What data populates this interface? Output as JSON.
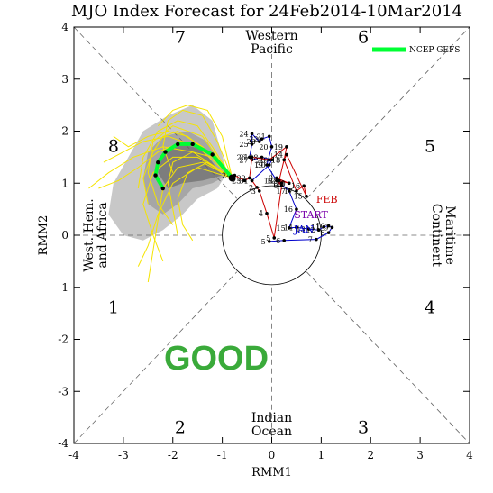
{
  "chart_data": {
    "type": "scatter",
    "title": "MJO Index Forecast for 24Feb2014-10Mar2014",
    "xlabel": "RMM1",
    "ylabel": "RMM2",
    "xlim": [
      -4,
      4
    ],
    "ylim": [
      -4,
      4
    ],
    "x_ticks": [
      "-4",
      "-3",
      "-2",
      "-1",
      "0",
      "1",
      "2",
      "3",
      "4"
    ],
    "y_ticks": [
      "-4",
      "-3",
      "-2",
      "-1",
      "0",
      "1",
      "2",
      "3",
      "4"
    ],
    "grid": false,
    "legend": {
      "position": "top-right",
      "entries": [
        {
          "name": "NCEP GEFS",
          "color": "#00ff33"
        }
      ]
    },
    "phase_numbers": [
      {
        "label": "1",
        "x": -3.2,
        "y": -1.5
      },
      {
        "label": "2",
        "x": -1.85,
        "y": -3.8
      },
      {
        "label": "3",
        "x": 1.85,
        "y": -3.8
      },
      {
        "label": "4",
        "x": 3.2,
        "y": -1.5
      },
      {
        "label": "5",
        "x": 3.2,
        "y": 1.6
      },
      {
        "label": "6",
        "x": 1.85,
        "y": 3.7
      },
      {
        "label": "7",
        "x": -1.85,
        "y": 3.7
      },
      {
        "label": "8",
        "x": -3.2,
        "y": 1.6
      }
    ],
    "region_labels": {
      "top": [
        "Western",
        "Pacific"
      ],
      "bottom": [
        "Indian",
        "Ocean"
      ],
      "left": [
        "West. Hem.",
        "and Africa"
      ],
      "right": [
        "Maritime",
        "Continent"
      ]
    },
    "month_labels": [
      {
        "label": "JAN",
        "x": 0.45,
        "y": 0.05,
        "color": "#0000cc"
      },
      {
        "label": "FEB",
        "x": 0.9,
        "y": 0.62,
        "color": "#cc0000"
      },
      {
        "label": "START",
        "x": 0.45,
        "y": 0.33,
        "color": "#7a00aa"
      }
    ],
    "watermark": {
      "text": "GOOD",
      "color": "#3aaa3a"
    },
    "observed": {
      "jan_color": "#0000cc",
      "feb_color": "#cc0000",
      "jan": [
        {
          "day": "5",
          "x": -0.05,
          "y": -0.12
        },
        {
          "day": "6",
          "x": 0.25,
          "y": -0.1
        },
        {
          "day": "7",
          "x": 0.9,
          "y": -0.08
        },
        {
          "day": "8",
          "x": 1.15,
          "y": 0.05
        },
        {
          "day": "9",
          "x": 1.22,
          "y": 0.15
        },
        {
          "day": "10",
          "x": 1.15,
          "y": 0.18
        },
        {
          "day": "11",
          "x": 1.05,
          "y": 0.16
        },
        {
          "day": "12",
          "x": 0.95,
          "y": 0.1
        },
        {
          "day": "13",
          "x": 0.75,
          "y": 0.12
        },
        {
          "day": "14",
          "x": 0.5,
          "y": 0.15
        },
        {
          "day": "15",
          "x": 0.35,
          "y": 0.14
        },
        {
          "day": "16",
          "x": 0.5,
          "y": 0.5
        },
        {
          "day": "17",
          "x": 0.35,
          "y": 0.85
        },
        {
          "day": "18",
          "x": 0.1,
          "y": 1.05
        },
        {
          "day": "19",
          "x": -0.1,
          "y": 1.35
        },
        {
          "day": "20",
          "x": 0.0,
          "y": 1.7
        },
        {
          "day": "21",
          "x": -0.05,
          "y": 1.9
        },
        {
          "day": "22",
          "x": -0.2,
          "y": 1.85
        },
        {
          "day": "23",
          "x": -0.25,
          "y": 1.8
        },
        {
          "day": "24",
          "x": -0.4,
          "y": 1.95
        },
        {
          "day": "25",
          "x": -0.4,
          "y": 1.75
        },
        {
          "day": "26",
          "x": -0.45,
          "y": 1.5
        },
        {
          "day": "27",
          "x": -0.4,
          "y": 1.45
        },
        {
          "day": "28",
          "x": -0.2,
          "y": 1.5
        },
        {
          "day": "29",
          "x": 0.0,
          "y": 1.45
        },
        {
          "day": "30",
          "x": -0.05,
          "y": 1.35
        },
        {
          "day": "31",
          "x": -0.4,
          "y": 1.05
        }
      ],
      "feb": [
        {
          "day": "1",
          "x": -0.4,
          "y": 1.05
        },
        {
          "day": "2",
          "x": -0.3,
          "y": 0.92
        },
        {
          "day": "3",
          "x": -0.25,
          "y": 0.85
        },
        {
          "day": "4",
          "x": -0.1,
          "y": 0.42
        },
        {
          "day": "5",
          "x": 0.05,
          "y": -0.05
        },
        {
          "day": "6",
          "x": 0.2,
          "y": 0.95
        },
        {
          "day": "7",
          "x": 0.1,
          "y": 1.05
        },
        {
          "day": "8",
          "x": 0.2,
          "y": 1.0
        },
        {
          "day": "9",
          "x": 0.1,
          "y": 1.1
        },
        {
          "day": "10",
          "x": 0.35,
          "y": 1.0
        },
        {
          "day": "11",
          "x": 0.35,
          "y": 1.0
        },
        {
          "day": "12",
          "x": 0.15,
          "y": 1.05
        },
        {
          "day": "13",
          "x": 0.25,
          "y": 1.45
        },
        {
          "day": "14",
          "x": 0.3,
          "y": 1.55
        },
        {
          "day": "15",
          "x": 0.7,
          "y": 0.75
        },
        {
          "day": "16",
          "x": 0.65,
          "y": 0.95
        },
        {
          "day": "17",
          "x": 0.5,
          "y": 0.85
        },
        {
          "day": "18",
          "x": 0.25,
          "y": 1.45
        },
        {
          "day": "19",
          "x": 0.3,
          "y": 1.7
        },
        {
          "day": "20",
          "x": -0.05,
          "y": 1.45
        },
        {
          "day": "21",
          "x": -0.4,
          "y": 1.5
        },
        {
          "day": "22",
          "x": -0.45,
          "y": 1.1
        },
        {
          "day": "23",
          "x": -0.55,
          "y": 1.05
        },
        {
          "day": "24",
          "x": -0.75,
          "y": 1.15
        }
      ]
    },
    "forecast_mean": {
      "name": "NCEP GEFS",
      "color": "#00ff33",
      "points": [
        {
          "x": -0.8,
          "y": 1.1
        },
        {
          "x": -1.2,
          "y": 1.55
        },
        {
          "x": -1.6,
          "y": 1.75
        },
        {
          "x": -1.9,
          "y": 1.75
        },
        {
          "x": -2.15,
          "y": 1.6
        },
        {
          "x": -2.3,
          "y": 1.4
        },
        {
          "x": -2.35,
          "y": 1.15
        },
        {
          "x": -2.2,
          "y": 0.9
        }
      ]
    },
    "ensemble_members": [
      [
        [
          -0.8,
          1.1
        ],
        [
          -1.3,
          1.6
        ],
        [
          -1.8,
          1.8
        ],
        [
          -2.3,
          1.6
        ],
        [
          -2.7,
          1.3
        ],
        [
          -3.1,
          1.05
        ],
        [
          -3.5,
          0.9
        ]
      ],
      [
        [
          -0.8,
          1.1
        ],
        [
          -1.4,
          1.4
        ],
        [
          -1.9,
          1.3
        ],
        [
          -2.2,
          0.9
        ],
        [
          -2.3,
          0.3
        ],
        [
          -2.4,
          -0.3
        ],
        [
          -2.5,
          -0.9
        ]
      ],
      [
        [
          -0.8,
          1.1
        ],
        [
          -1.2,
          1.7
        ],
        [
          -1.5,
          2.1
        ],
        [
          -1.9,
          2.2
        ],
        [
          -2.3,
          2.0
        ],
        [
          -2.6,
          1.5
        ],
        [
          -2.7,
          0.9
        ]
      ],
      [
        [
          -0.8,
          1.1
        ],
        [
          -1.5,
          1.5
        ],
        [
          -2.0,
          1.5
        ],
        [
          -2.4,
          1.2
        ],
        [
          -2.6,
          0.6
        ],
        [
          -2.4,
          0.0
        ],
        [
          -2.2,
          -0.5
        ]
      ],
      [
        [
          -0.8,
          1.1
        ],
        [
          -1.1,
          1.8
        ],
        [
          -1.4,
          2.3
        ],
        [
          -1.8,
          2.4
        ],
        [
          -2.1,
          2.2
        ],
        [
          -2.2,
          1.7
        ],
        [
          -2.0,
          1.2
        ]
      ],
      [
        [
          -0.8,
          1.1
        ],
        [
          -1.3,
          1.4
        ],
        [
          -1.7,
          1.2
        ],
        [
          -1.9,
          0.7
        ],
        [
          -1.8,
          0.2
        ],
        [
          -1.6,
          -0.1
        ]
      ],
      [
        [
          -0.8,
          1.1
        ],
        [
          -1.5,
          1.7
        ],
        [
          -2.1,
          1.9
        ],
        [
          -2.6,
          1.8
        ],
        [
          -3.0,
          1.6
        ],
        [
          -3.4,
          1.4
        ]
      ],
      [
        [
          -0.8,
          1.1
        ],
        [
          -1.4,
          1.9
        ],
        [
          -2.0,
          2.1
        ],
        [
          -2.4,
          1.8
        ],
        [
          -2.5,
          1.2
        ],
        [
          -2.3,
          0.6
        ],
        [
          -2.0,
          0.2
        ]
      ],
      [
        [
          -0.8,
          1.1
        ],
        [
          -1.2,
          1.5
        ],
        [
          -1.6,
          1.6
        ],
        [
          -2.0,
          1.4
        ],
        [
          -2.1,
          1.0
        ],
        [
          -2.0,
          0.5
        ],
        [
          -1.9,
          0.0
        ]
      ],
      [
        [
          -0.8,
          1.1
        ],
        [
          -1.6,
          1.6
        ],
        [
          -2.2,
          1.7
        ],
        [
          -2.8,
          1.5
        ],
        [
          -3.3,
          1.2
        ],
        [
          -3.7,
          0.9
        ]
      ],
      [
        [
          -0.8,
          1.1
        ],
        [
          -1.0,
          1.9
        ],
        [
          -1.3,
          2.4
        ],
        [
          -1.7,
          2.5
        ],
        [
          -2.0,
          2.4
        ],
        [
          -2.3,
          2.1
        ]
      ],
      [
        [
          -0.8,
          1.1
        ],
        [
          -1.5,
          1.3
        ],
        [
          -2.0,
          1.0
        ],
        [
          -2.3,
          0.4
        ],
        [
          -2.5,
          -0.2
        ],
        [
          -2.7,
          -0.6
        ]
      ],
      [
        [
          -0.8,
          1.1
        ],
        [
          -1.4,
          1.7
        ],
        [
          -1.9,
          2.0
        ],
        [
          -2.2,
          1.9
        ],
        [
          -2.4,
          1.6
        ],
        [
          -2.6,
          1.1
        ],
        [
          -2.5,
          0.6
        ]
      ],
      [
        [
          -0.8,
          1.1
        ],
        [
          -1.3,
          1.6
        ],
        [
          -1.7,
          1.9
        ],
        [
          -2.1,
          2.0
        ],
        [
          -2.5,
          1.9
        ],
        [
          -2.9,
          1.7
        ],
        [
          -3.2,
          1.9
        ]
      ]
    ],
    "spread_outer": [
      [
        -0.9,
        1.2
      ],
      [
        -1.2,
        2.2
      ],
      [
        -1.6,
        2.5
      ],
      [
        -2.1,
        2.3
      ],
      [
        -2.6,
        2.0
      ],
      [
        -2.9,
        1.5
      ],
      [
        -3.2,
        1.0
      ],
      [
        -3.3,
        0.4
      ],
      [
        -3.0,
        0.0
      ],
      [
        -2.6,
        -0.1
      ],
      [
        -2.2,
        0.1
      ],
      [
        -1.8,
        0.4
      ],
      [
        -1.5,
        0.7
      ],
      [
        -1.1,
        0.9
      ]
    ],
    "spread_inner": [
      [
        -0.9,
        1.15
      ],
      [
        -1.3,
        1.8
      ],
      [
        -1.7,
        2.0
      ],
      [
        -2.2,
        1.9
      ],
      [
        -2.5,
        1.6
      ],
      [
        -2.6,
        1.1
      ],
      [
        -2.5,
        0.6
      ],
      [
        -2.2,
        0.4
      ],
      [
        -1.9,
        0.6
      ],
      [
        -1.6,
        0.9
      ],
      [
        -1.2,
        1.0
      ]
    ],
    "spread_core": [
      [
        -1.0,
        1.15
      ],
      [
        -1.4,
        1.65
      ],
      [
        -1.8,
        1.75
      ],
      [
        -2.2,
        1.6
      ],
      [
        -2.3,
        1.2
      ],
      [
        -2.1,
        0.9
      ],
      [
        -1.8,
        1.0
      ],
      [
        -1.4,
        1.05
      ]
    ]
  }
}
